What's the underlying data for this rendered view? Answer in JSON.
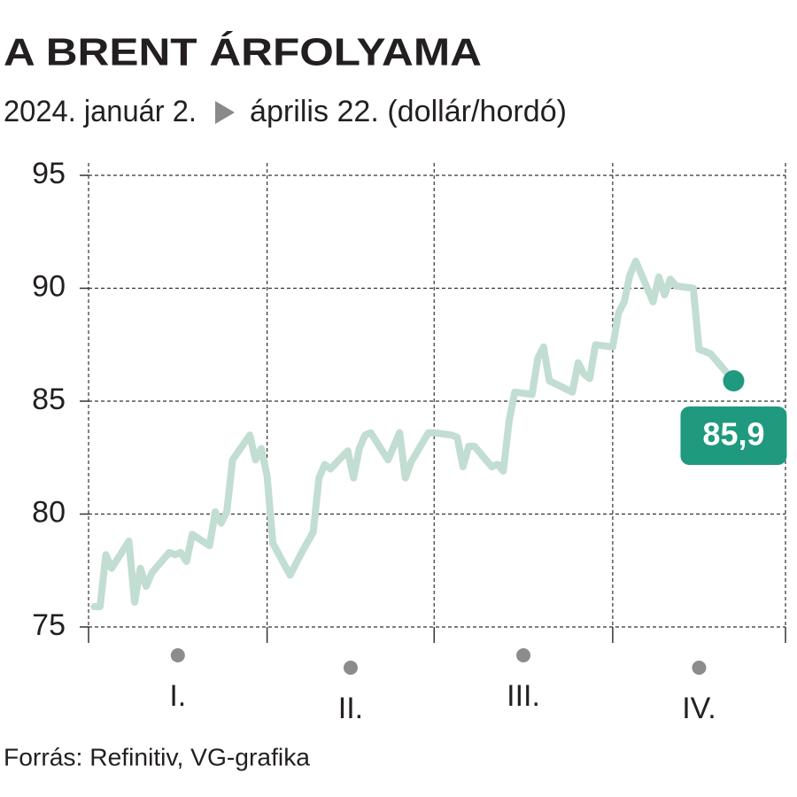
{
  "chart_data": {
    "type": "line",
    "title": "A BRENT ÁRFOLYAMA",
    "subtitle_start": "2024. január 2.",
    "subtitle_end": "április 22. (dollár/hordó)",
    "source": "Forrás: Refinitiv, VG-grafika",
    "month_labels": [
      "I.",
      "II.",
      "III.",
      "IV."
    ],
    "x": [
      2,
      3,
      4,
      5,
      8,
      9,
      10,
      11,
      12,
      15,
      16,
      17,
      18,
      19,
      22,
      23,
      24,
      25,
      26,
      29,
      30,
      31,
      32,
      33,
      36,
      38,
      40,
      41,
      42,
      43,
      46,
      47,
      48,
      49,
      50,
      53,
      54,
      55,
      56,
      57,
      60,
      61,
      64,
      65,
      66,
      67,
      68,
      71,
      72,
      73,
      74,
      75,
      78,
      79,
      80,
      81,
      85,
      86,
      87,
      88,
      89,
      92,
      93,
      94,
      95,
      96,
      99,
      100,
      101,
      102,
      103,
      106,
      107,
      108,
      109,
      113
    ],
    "series": [
      {
        "name": "Brent",
        "color": "#c2ddd2",
        "values": [
          75.9,
          75.9,
          78.2,
          77.6,
          78.8,
          76.1,
          77.6,
          76.8,
          77.4,
          78.3,
          78.2,
          78.3,
          77.9,
          79.1,
          78.6,
          80.1,
          79.6,
          80.1,
          82.4,
          83.5,
          82.4,
          82.9,
          81.7,
          78.7,
          77.3,
          78.3,
          79.2,
          81.6,
          82.2,
          82.0,
          82.8,
          81.6,
          82.9,
          83.5,
          83.6,
          82.4,
          83.0,
          83.6,
          81.6,
          82.3,
          83.6,
          83.6,
          83.5,
          83.4,
          82.1,
          83.0,
          83.0,
          82.1,
          82.2,
          81.9,
          84.1,
          85.4,
          85.3,
          86.9,
          87.4,
          85.9,
          85.4,
          86.7,
          86.2,
          86.0,
          87.5,
          87.4,
          88.9,
          89.4,
          90.6,
          91.2,
          89.4,
          90.5,
          89.7,
          90.4,
          90.1,
          90.0,
          87.3,
          87.2,
          87.1,
          85.9
        ]
      }
    ],
    "last_value_label": "85,9",
    "highlight_color": "#1f9a7e",
    "xlim": [
      1,
      122
    ],
    "xticks": [
      1,
      32,
      61,
      92,
      122
    ],
    "ylim": [
      75,
      95
    ],
    "yticks": [
      75,
      80,
      85,
      90,
      95
    ],
    "grid": true
  }
}
